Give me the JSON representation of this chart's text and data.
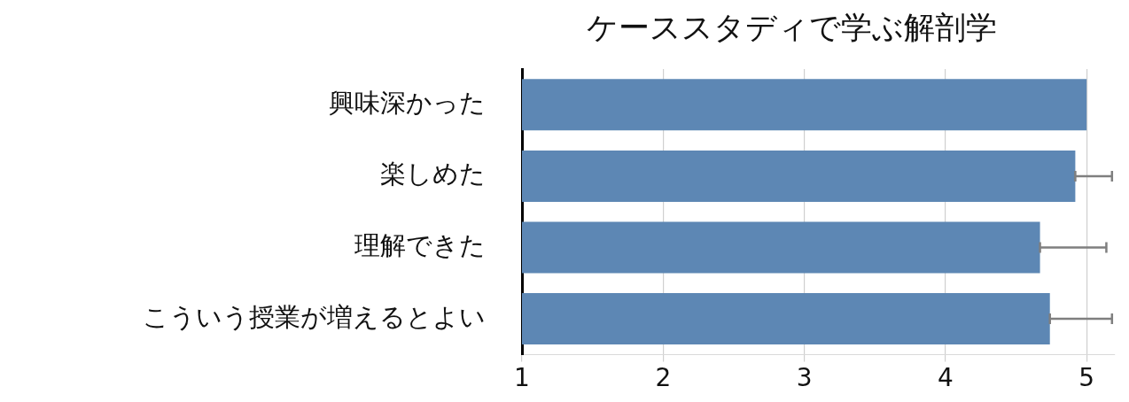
{
  "chart_data": {
    "type": "bar",
    "orientation": "horizontal",
    "title": "ケーススタディで学ぶ解剖学",
    "categories": [
      "興味深かった",
      "楽しめた",
      "理解できた",
      "こういう授業が増えるとよい"
    ],
    "values": [
      5.0,
      4.92,
      4.67,
      4.74
    ],
    "errors": [
      null,
      [
        4.92,
        5.18
      ],
      [
        4.67,
        5.14
      ],
      [
        4.74,
        5.18
      ]
    ],
    "color": "#5d87b4",
    "xlim": [
      1,
      5.2
    ],
    "xticks": [
      1,
      2,
      3,
      4,
      5
    ],
    "grid": "x",
    "legend": false
  }
}
